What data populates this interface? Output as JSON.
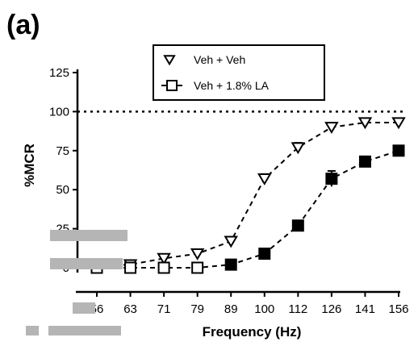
{
  "panel_label": "(a)",
  "chart_data": {
    "type": "line",
    "title": "",
    "xlabel": "Frequency (Hz)",
    "ylabel": "%MCR",
    "categories": [
      "56",
      "63",
      "71",
      "79",
      "89",
      "100",
      "112",
      "126",
      "141",
      "156"
    ],
    "ylim": [
      0,
      125
    ],
    "yticks": [
      0,
      25,
      50,
      75,
      100,
      125
    ],
    "reference_line": 100,
    "grid": false,
    "legend_position": "top-center",
    "series": [
      {
        "name": "Veh + Veh",
        "marker": "open-triangle-down",
        "values": [
          1,
          2,
          6,
          9,
          17,
          57,
          77,
          90,
          93,
          93
        ],
        "errors": [
          0,
          0,
          0,
          2,
          2,
          3,
          3,
          2,
          2,
          0
        ]
      },
      {
        "name": "Veh + 1.8% LA",
        "marker": "open-square-filled-late",
        "values": [
          0,
          0,
          0,
          0,
          2,
          9,
          27,
          57,
          68,
          75
        ],
        "errors": [
          0,
          0,
          0,
          0,
          0,
          1,
          2,
          5,
          2,
          2
        ]
      }
    ]
  },
  "colors": {
    "ink": "#000000",
    "watermark": "#b5b5b5"
  }
}
